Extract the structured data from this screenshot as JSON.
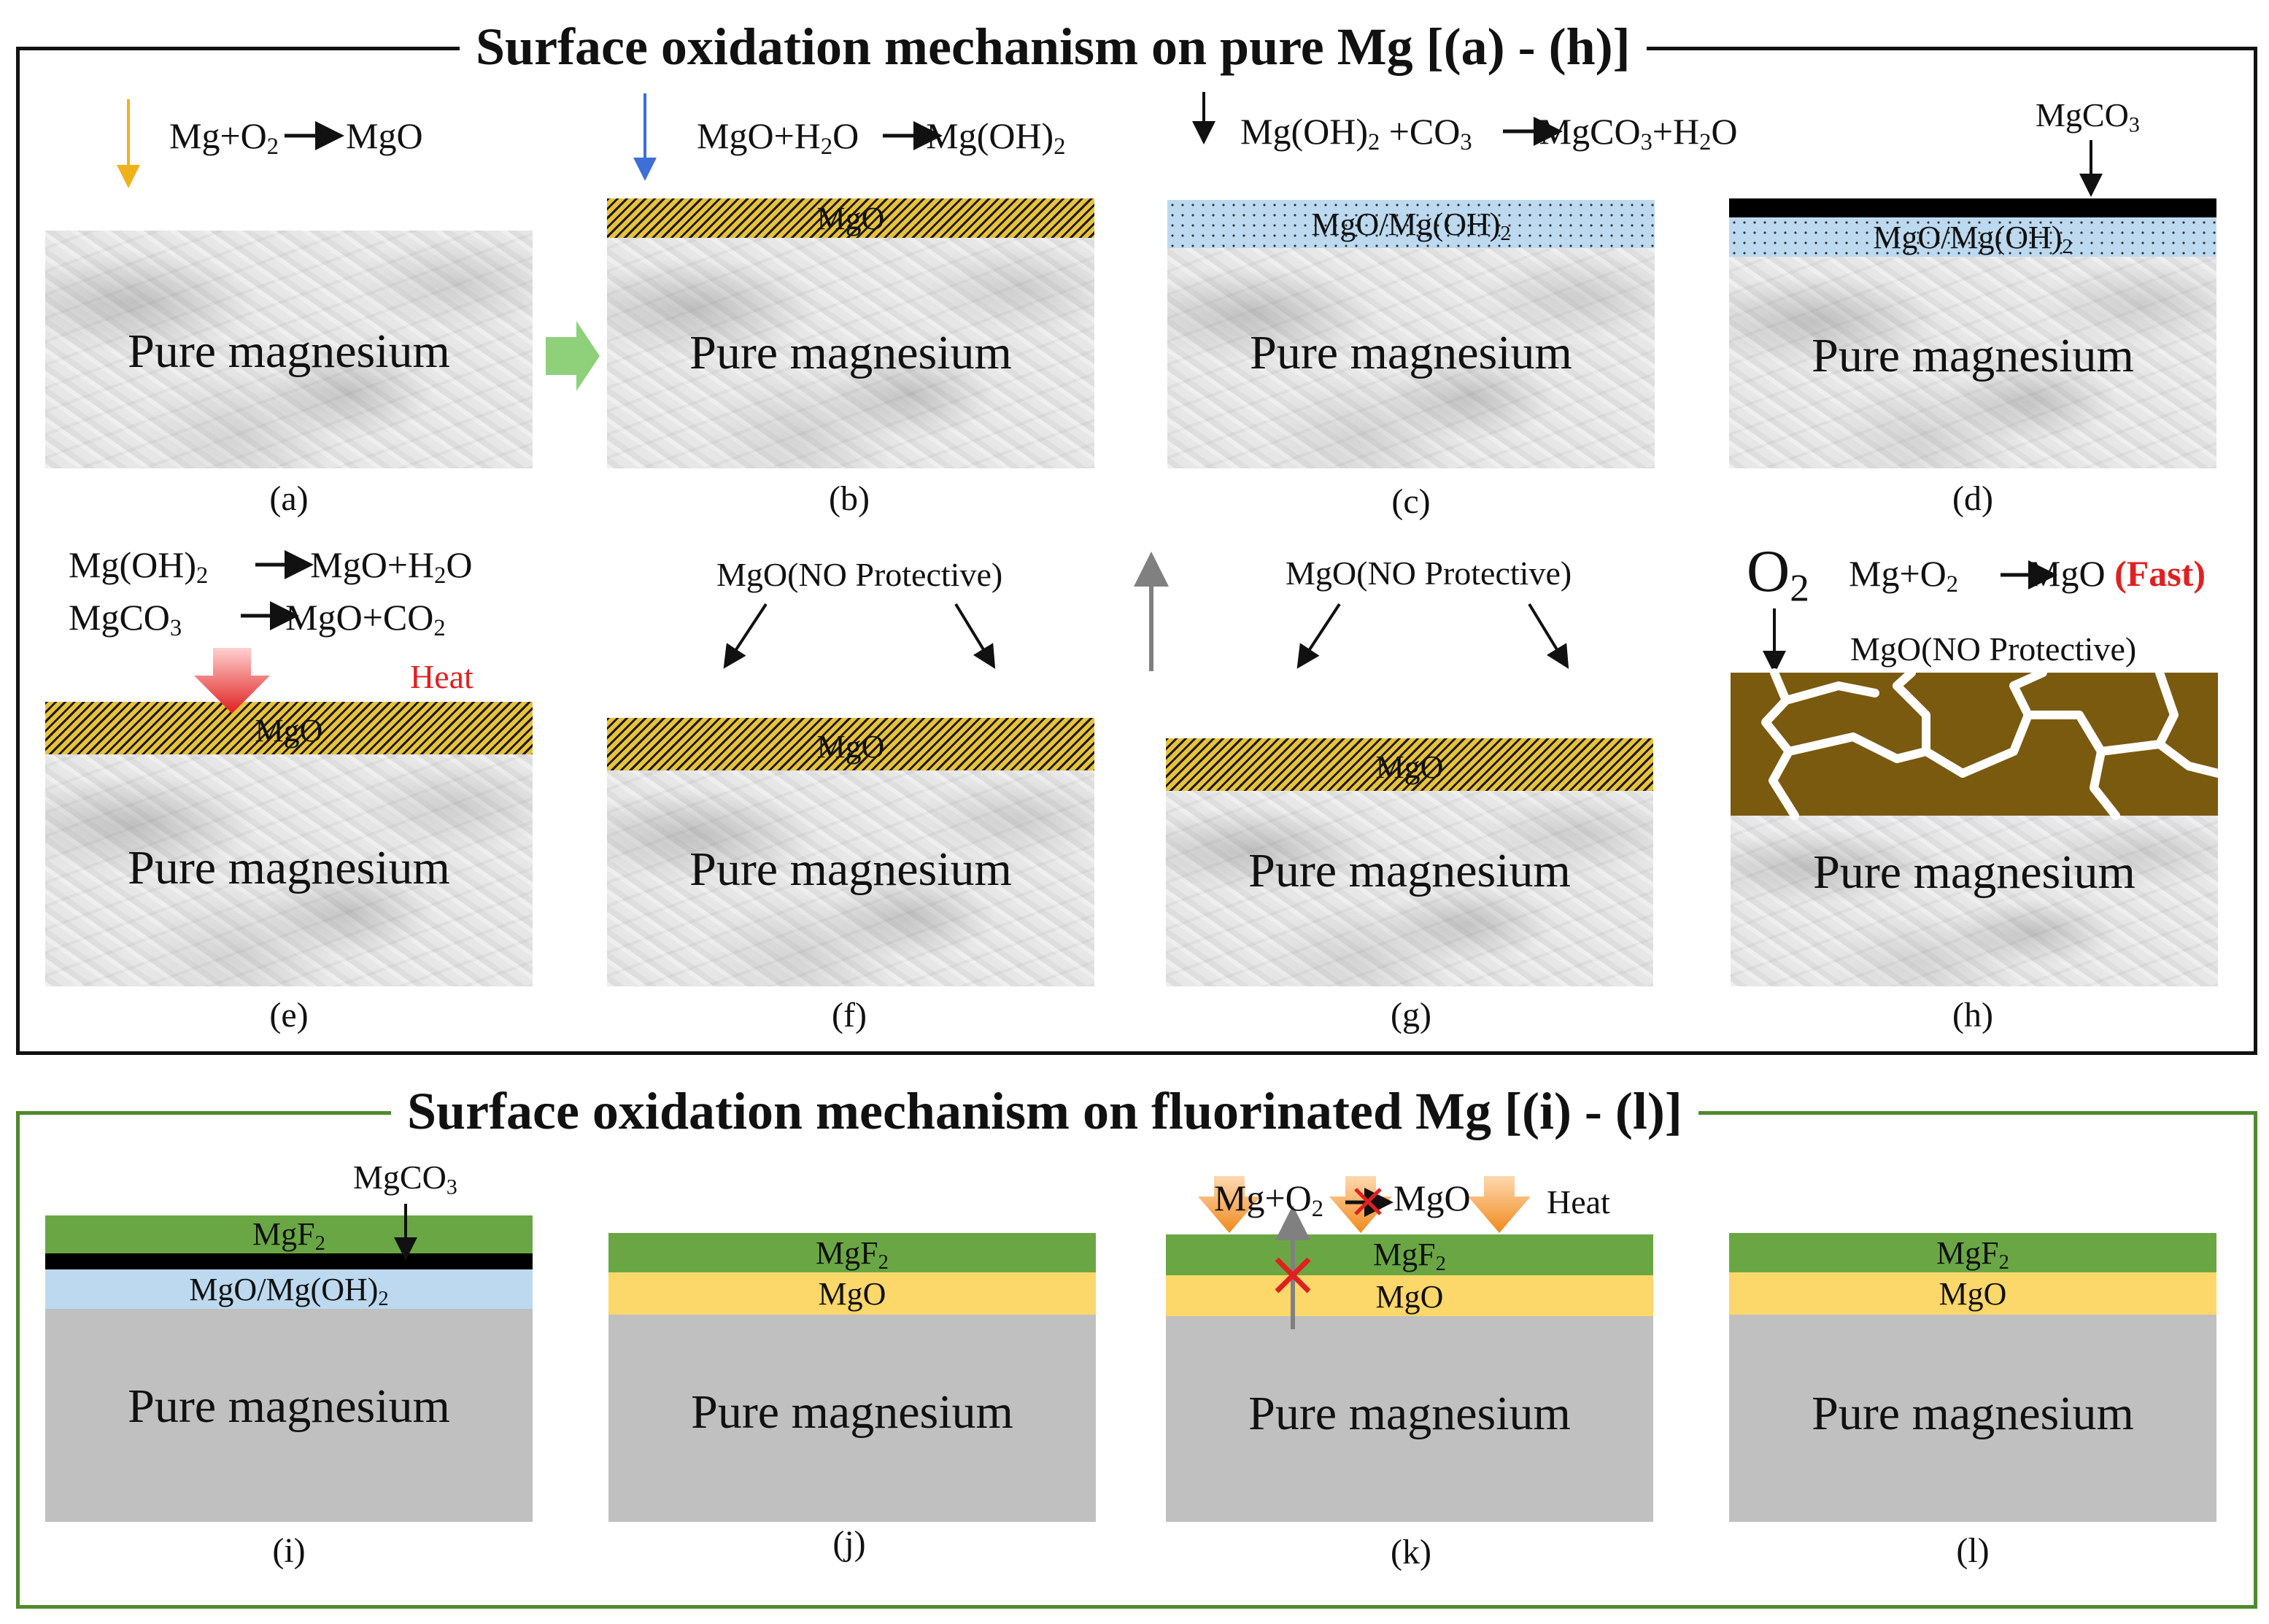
{
  "titles": {
    "pure": "Surface oxidation mechanism on pure Mg [(a) - (h)]",
    "fluorinated": "Surface oxidation mechanism on fluorinated Mg [(i) - (l)]"
  },
  "substrate_label": "Pure magnesium",
  "captions": [
    "(a)",
    "(b)",
    "(c)",
    "(d)",
    "(e)",
    "(f)",
    "(g)",
    "(h)",
    "(i)",
    "(j)",
    "(k)",
    "(l)"
  ],
  "layers": {
    "mgo": "MgO",
    "mgo_mgoh2_base": "MgO/Mg(OH)",
    "sub2": "2",
    "sub3": "3",
    "mgf2_base": "MgF",
    "mgco3_base": "MgCO"
  },
  "equations": {
    "a": {
      "p1": "Mg+O",
      "p2": "MgO"
    },
    "b": {
      "p1": "MgO+H",
      "p2": "O",
      "p3": "Mg(OH)"
    },
    "c": {
      "p1": "Mg(OH)",
      "p2": " +CO",
      "p3": "MgCO",
      "p4": "+H",
      "p5": "O"
    },
    "e1": {
      "p1": "Mg(OH)",
      "p2": "MgO+H",
      "p3": "O"
    },
    "e2": {
      "p1": "MgCO",
      "p2": "MgO+CO"
    },
    "h": {
      "p1": "Mg+O",
      "p2": "MgO",
      "fast": "(Fast)"
    },
    "k": {
      "p1": "Mg+O",
      "p2": "MgO"
    }
  },
  "labels": {
    "no_protective": "MgO(NO Protective)",
    "heat": "Heat",
    "o2": "O"
  },
  "colors": {
    "mgf2": "#6aa744",
    "mgo_yellow": "#fcd76a",
    "mgo_mgoh2_blue": "#bcd9ef",
    "nonprotective_brown": "#7a5a0f",
    "heat_red": "#e02020",
    "heat_orange": "#f08a1e",
    "gray_substrate": "#c0c0c0",
    "frame_green": "#4f8a2c"
  }
}
